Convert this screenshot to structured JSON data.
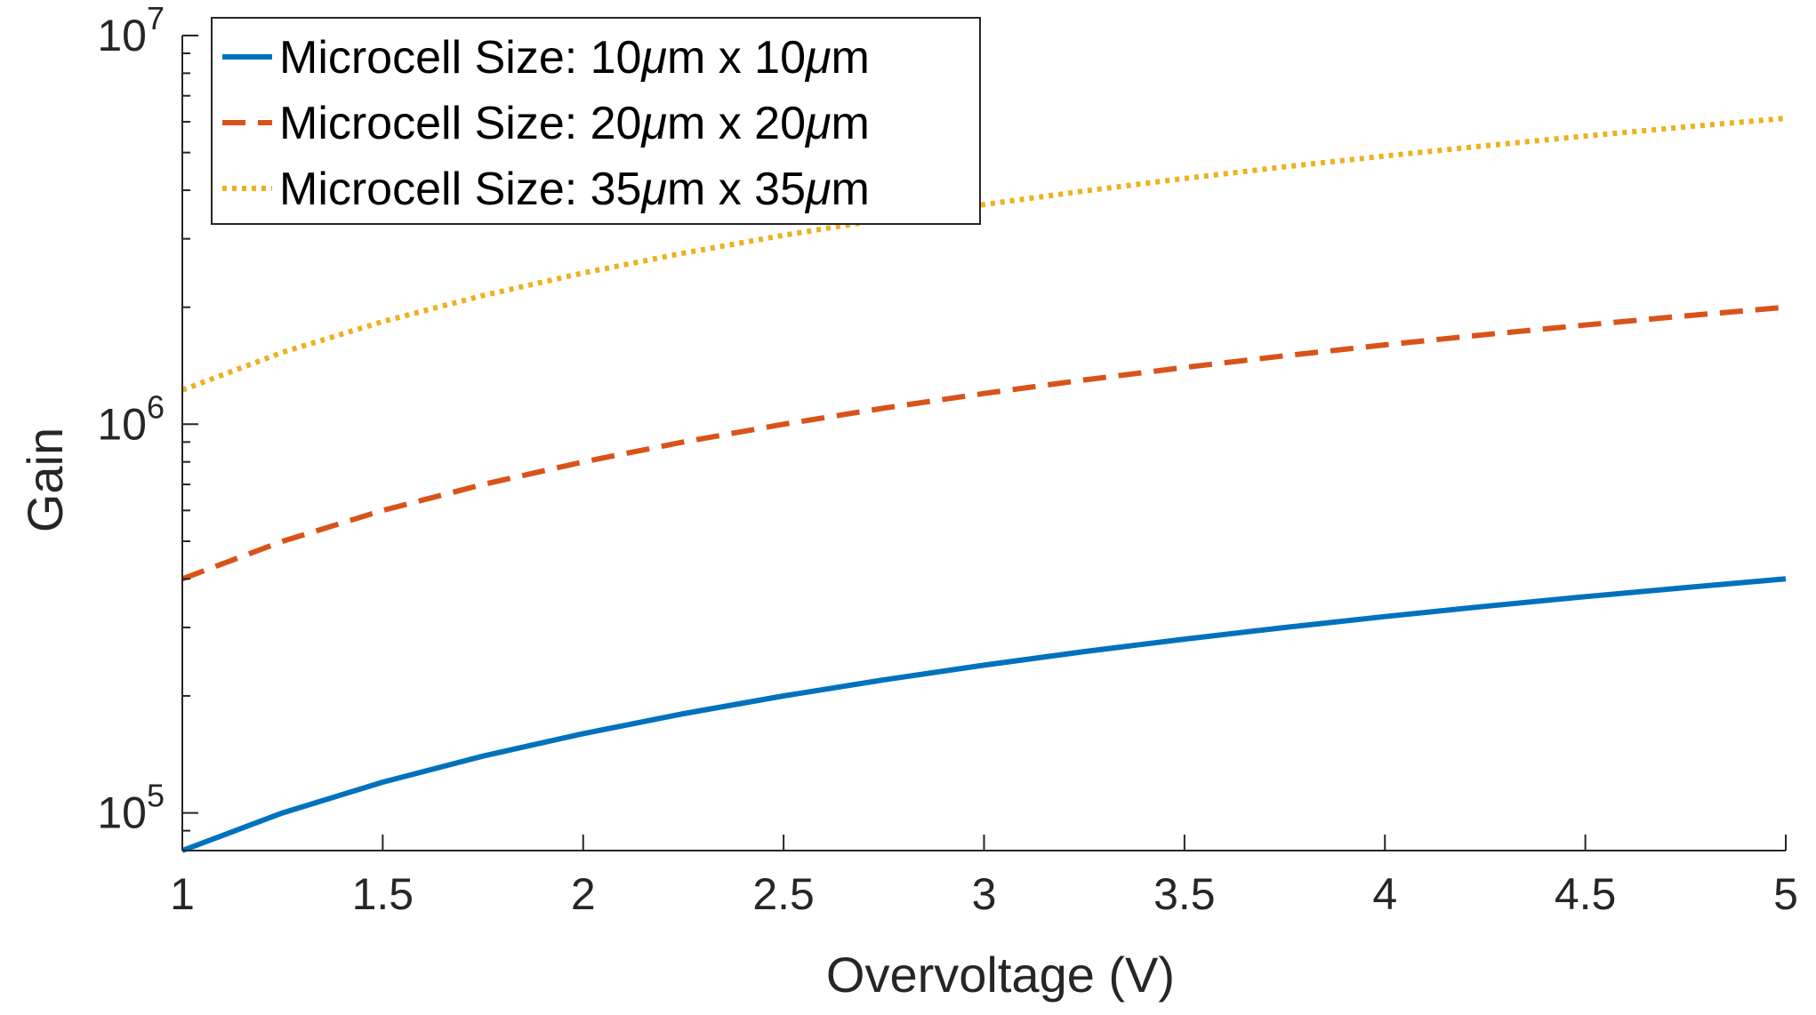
{
  "chart_data": {
    "type": "line",
    "title": "",
    "xlabel": "Overvoltage (V)",
    "ylabel": "Gain",
    "yscale": "log",
    "xlim": [
      1,
      5
    ],
    "ylim": [
      80000,
      10000000
    ],
    "x": [
      1,
      1.25,
      1.5,
      1.75,
      2,
      2.25,
      2.5,
      2.75,
      3,
      3.25,
      3.5,
      3.75,
      4,
      4.25,
      4.5,
      4.75,
      5
    ],
    "x_ticks": [
      1,
      1.5,
      2,
      2.5,
      3,
      3.5,
      4,
      4.5,
      5
    ],
    "x_tick_labels": [
      "1",
      "1.5",
      "2",
      "2.5",
      "3",
      "3.5",
      "4",
      "4.5",
      "5"
    ],
    "y_ticks": [
      {
        "value": 100000,
        "base": "10",
        "exp": "5"
      },
      {
        "value": 1000000,
        "base": "10",
        "exp": "6"
      },
      {
        "value": 10000000,
        "base": "10",
        "exp": "7"
      }
    ],
    "legend_position": "top-left",
    "series": [
      {
        "name": "Microcell Size: 10μm x 10μm",
        "legend_parts": [
          "Microcell Size: 10",
          "μ",
          "m x 10",
          "μ",
          "m"
        ],
        "color": "#0072BD",
        "style": "solid",
        "values": [
          80000,
          100000,
          120000,
          140000,
          160000,
          180000,
          200000,
          220000,
          240000,
          260000,
          280000,
          300000,
          320000,
          340000,
          360000,
          380000,
          400000
        ]
      },
      {
        "name": "Microcell Size: 20μm x 20μm",
        "legend_parts": [
          "Microcell Size: 20",
          "μ",
          "m x 20",
          "μ",
          "m"
        ],
        "color": "#D95319",
        "style": "dashed",
        "values": [
          400000,
          500000,
          600000,
          700000,
          800000,
          900000,
          1000000,
          1100000,
          1200000,
          1300000,
          1400000,
          1500000,
          1600000,
          1700000,
          1800000,
          1900000,
          2000000
        ]
      },
      {
        "name": "Microcell Size: 35μm x 35μm",
        "legend_parts": [
          "Microcell Size: 35",
          "μ",
          "m x 35",
          "μ",
          "m"
        ],
        "color": "#EDB120",
        "style": "dotted",
        "values": [
          1225000,
          1531250,
          1837500,
          2143750,
          2450000,
          2756250,
          3062500,
          3368750,
          3675000,
          3981250,
          4287500,
          4593750,
          4900000,
          5206250,
          5512500,
          5818750,
          6125000
        ]
      }
    ]
  }
}
